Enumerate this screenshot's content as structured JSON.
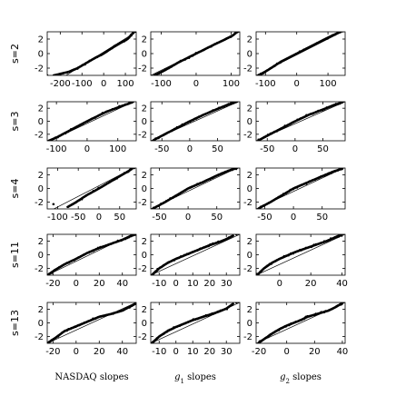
{
  "chart_data": {
    "type": "scatter",
    "description_kind": "normal probability plots (sample quantile vs. normal quantile) with reference line",
    "grid": false,
    "legend": "none",
    "row_labels": [
      "s=2",
      "s=3",
      "s=4",
      "s=11",
      "s=13"
    ],
    "column_labels": [
      {
        "pre": "NASDAQ slopes",
        "sym": "",
        "sub": "",
        "post": ""
      },
      {
        "pre": "",
        "sym": "g",
        "sub": "1",
        "post": " slopes"
      },
      {
        "pre": "",
        "sym": "g",
        "sub": "2",
        "post": " slopes"
      }
    ],
    "y_axis": {
      "range": [
        -3,
        3
      ],
      "ticks": [
        "-2",
        "0",
        "2"
      ]
    },
    "panels": [
      {
        "row": 0,
        "col": 0,
        "xlim": [
          -260,
          150
        ],
        "xticks": [
          {
            "v": -200,
            "t": "-200"
          },
          {
            "v": -100,
            "t": "-100"
          },
          {
            "v": 0,
            "t": "0"
          },
          {
            "v": 100,
            "t": "100"
          }
        ],
        "ref_line": {
          "x": [
            -200,
            150
          ],
          "y": [
            -3.5,
            3.0
          ]
        },
        "curve": [
          [
            -230,
            -3.0
          ],
          [
            -160,
            -2.5
          ],
          [
            -120,
            -2.0
          ],
          [
            -80,
            -1.3
          ],
          [
            -40,
            -0.6
          ],
          [
            0,
            0.0
          ],
          [
            40,
            0.8
          ],
          [
            80,
            1.5
          ],
          [
            110,
            2.0
          ],
          [
            125,
            2.5
          ],
          [
            140,
            3.0
          ]
        ],
        "outliers": [
          [
            -260,
            -3.0
          ],
          [
            150,
            3.0
          ]
        ]
      },
      {
        "row": 0,
        "col": 1,
        "xlim": [
          -130,
          125
        ],
        "xticks": [
          {
            "v": -100,
            "t": "-100"
          },
          {
            "v": 0,
            "t": "0"
          },
          {
            "v": 100,
            "t": "100"
          }
        ],
        "ref_line": {
          "x": [
            -130,
            125
          ],
          "y": [
            -3.0,
            3.0
          ]
        },
        "curve": [
          [
            -120,
            -3.0
          ],
          [
            -90,
            -2.3
          ],
          [
            -50,
            -1.2
          ],
          [
            0,
            0.0
          ],
          [
            50,
            1.2
          ],
          [
            85,
            2.0
          ],
          [
            105,
            2.5
          ],
          [
            118,
            3.0
          ]
        ],
        "outliers": []
      },
      {
        "row": 0,
        "col": 2,
        "xlim": [
          -130,
          155
        ],
        "xticks": [
          {
            "v": -100,
            "t": "-100"
          },
          {
            "v": 0,
            "t": "0"
          },
          {
            "v": 100,
            "t": "100"
          }
        ],
        "ref_line": {
          "x": [
            -130,
            155
          ],
          "y": [
            -3.0,
            3.2
          ]
        },
        "curve": [
          [
            -120,
            -3.0
          ],
          [
            -90,
            -2.2
          ],
          [
            -50,
            -1.1
          ],
          [
            0,
            0.0
          ],
          [
            50,
            1.1
          ],
          [
            100,
            2.2
          ],
          [
            130,
            2.8
          ],
          [
            150,
            3.2
          ]
        ],
        "outliers": []
      },
      {
        "row": 1,
        "col": 0,
        "xlim": [
          -130,
          160
        ],
        "xticks": [
          {
            "v": -100,
            "t": "-100"
          },
          {
            "v": 0,
            "t": "0"
          },
          {
            "v": 100,
            "t": "100"
          }
        ],
        "ref_line": {
          "x": [
            -130,
            160
          ],
          "y": [
            -3.2,
            3.2
          ]
        },
        "curve": [
          [
            -125,
            -3.0
          ],
          [
            -100,
            -2.5
          ],
          [
            -60,
            -1.5
          ],
          [
            0,
            0.0
          ],
          [
            60,
            1.4
          ],
          [
            110,
            2.3
          ],
          [
            135,
            2.7
          ],
          [
            150,
            3.0
          ]
        ],
        "outliers": [
          [
            -128,
            -3.1
          ]
        ]
      },
      {
        "row": 1,
        "col": 1,
        "xlim": [
          -70,
          90
        ],
        "xticks": [
          {
            "v": -50,
            "t": "-50"
          },
          {
            "v": 0,
            "t": "0"
          },
          {
            "v": 50,
            "t": "50"
          }
        ],
        "ref_line": {
          "x": [
            -70,
            90
          ],
          "y": [
            -3.0,
            3.1
          ]
        },
        "curve": [
          [
            -65,
            -2.9
          ],
          [
            -45,
            -2.0
          ],
          [
            -20,
            -0.9
          ],
          [
            0,
            0.0
          ],
          [
            25,
            1.0
          ],
          [
            50,
            1.9
          ],
          [
            70,
            2.6
          ],
          [
            85,
            3.0
          ]
        ],
        "outliers": []
      },
      {
        "row": 1,
        "col": 2,
        "xlim": [
          -70,
          90
        ],
        "xticks": [
          {
            "v": -50,
            "t": "-50"
          },
          {
            "v": 0,
            "t": "0"
          },
          {
            "v": 50,
            "t": "50"
          }
        ],
        "ref_line": {
          "x": [
            -70,
            90
          ],
          "y": [
            -3.0,
            3.0
          ]
        },
        "curve": [
          [
            -65,
            -2.9
          ],
          [
            -45,
            -2.0
          ],
          [
            -20,
            -0.9
          ],
          [
            0,
            0.0
          ],
          [
            25,
            1.0
          ],
          [
            50,
            1.8
          ],
          [
            70,
            2.5
          ],
          [
            85,
            2.9
          ]
        ],
        "outliers": []
      },
      {
        "row": 2,
        "col": 0,
        "xlim": [
          -125,
          90
        ],
        "xticks": [
          {
            "v": -100,
            "t": "-100"
          },
          {
            "v": -50,
            "t": "-50"
          },
          {
            "v": 0,
            "t": "0"
          },
          {
            "v": 50,
            "t": "50"
          }
        ],
        "ref_line": {
          "x": [
            -125,
            90
          ],
          "y": [
            -3.5,
            3.2
          ]
        },
        "curve": [
          [
            -75,
            -2.7
          ],
          [
            -55,
            -2.0
          ],
          [
            -30,
            -1.0
          ],
          [
            0,
            0.0
          ],
          [
            25,
            0.9
          ],
          [
            50,
            1.8
          ],
          [
            70,
            2.5
          ],
          [
            80,
            2.9
          ]
        ],
        "outliers": [
          [
            -110,
            -2.3
          ],
          [
            85,
            3.0
          ]
        ]
      },
      {
        "row": 2,
        "col": 1,
        "xlim": [
          -65,
          90
        ],
        "xticks": [
          {
            "v": -50,
            "t": "-50"
          },
          {
            "v": 0,
            "t": "0"
          },
          {
            "v": 50,
            "t": "50"
          }
        ],
        "ref_line": {
          "x": [
            -65,
            90
          ],
          "y": [
            -3.0,
            3.2
          ]
        },
        "curve": [
          [
            -60,
            -2.9
          ],
          [
            -40,
            -2.0
          ],
          [
            -20,
            -1.0
          ],
          [
            0,
            0.0
          ],
          [
            25,
            0.9
          ],
          [
            50,
            1.9
          ],
          [
            70,
            2.6
          ],
          [
            85,
            3.0
          ]
        ],
        "outliers": [
          [
            -62,
            -3.0
          ],
          [
            88,
            3.1
          ]
        ]
      },
      {
        "row": 2,
        "col": 2,
        "xlim": [
          -65,
          90
        ],
        "xticks": [
          {
            "v": -50,
            "t": "-50"
          },
          {
            "v": 0,
            "t": "0"
          },
          {
            "v": 50,
            "t": "50"
          }
        ],
        "ref_line": {
          "x": [
            -65,
            90
          ],
          "y": [
            -3.0,
            3.1
          ]
        },
        "curve": [
          [
            -60,
            -2.9
          ],
          [
            -40,
            -2.0
          ],
          [
            -20,
            -1.0
          ],
          [
            0,
            0.0
          ],
          [
            25,
            0.9
          ],
          [
            50,
            1.8
          ],
          [
            70,
            2.5
          ],
          [
            85,
            2.9
          ]
        ],
        "outliers": []
      },
      {
        "row": 3,
        "col": 0,
        "xlim": [
          -25,
          52
        ],
        "xticks": [
          {
            "v": -20,
            "t": "-20"
          },
          {
            "v": 0,
            "t": "0"
          },
          {
            "v": 20,
            "t": "20"
          },
          {
            "v": 40,
            "t": "40"
          }
        ],
        "ref_line": {
          "x": [
            -25,
            52
          ],
          "y": [
            -3.0,
            3.3
          ]
        },
        "curve": [
          [
            -24,
            -2.9
          ],
          [
            -18,
            -2.2
          ],
          [
            -10,
            -1.4
          ],
          [
            0,
            -0.6
          ],
          [
            10,
            0.3
          ],
          [
            20,
            1.0
          ],
          [
            30,
            1.6
          ],
          [
            40,
            2.2
          ],
          [
            48,
            2.8
          ],
          [
            52,
            3.0
          ]
        ],
        "outliers": []
      },
      {
        "row": 3,
        "col": 1,
        "xlim": [
          -15,
          38
        ],
        "xticks": [
          {
            "v": -10,
            "t": "-10"
          },
          {
            "v": 0,
            "t": "0"
          },
          {
            "v": 10,
            "t": "10"
          },
          {
            "v": 20,
            "t": "20"
          },
          {
            "v": 30,
            "t": "30"
          }
        ],
        "ref_line": {
          "x": [
            -15,
            38
          ],
          "y": [
            -3.0,
            3.0
          ]
        },
        "curve": [
          [
            -14,
            -2.9
          ],
          [
            -10,
            -2.0
          ],
          [
            -5,
            -1.2
          ],
          [
            0,
            -0.6
          ],
          [
            5,
            -0.1
          ],
          [
            10,
            0.4
          ],
          [
            15,
            0.9
          ],
          [
            20,
            1.4
          ],
          [
            25,
            1.8
          ],
          [
            30,
            2.3
          ],
          [
            34,
            2.8
          ]
        ],
        "outliers": [
          [
            36,
            3.0
          ]
        ]
      },
      {
        "row": 3,
        "col": 2,
        "xlim": [
          -15,
          42
        ],
        "xticks": [
          {
            "v": 0,
            "t": "0"
          },
          {
            "v": 20,
            "t": "20"
          },
          {
            "v": 40,
            "t": "40"
          }
        ],
        "ref_line": {
          "x": [
            -15,
            42
          ],
          "y": [
            -3.0,
            3.0
          ]
        },
        "curve": [
          [
            -14,
            -2.9
          ],
          [
            -10,
            -2.0
          ],
          [
            -5,
            -1.2
          ],
          [
            0,
            -0.6
          ],
          [
            5,
            -0.1
          ],
          [
            10,
            0.4
          ],
          [
            15,
            0.8
          ],
          [
            20,
            1.2
          ],
          [
            25,
            1.6
          ],
          [
            30,
            2.0
          ],
          [
            35,
            2.5
          ],
          [
            40,
            3.0
          ]
        ],
        "outliers": []
      },
      {
        "row": 4,
        "col": 0,
        "xlim": [
          -25,
          52
        ],
        "xticks": [
          {
            "v": -20,
            "t": "-20"
          },
          {
            "v": 0,
            "t": "0"
          },
          {
            "v": 20,
            "t": "20"
          },
          {
            "v": 40,
            "t": "40"
          }
        ],
        "ref_line": {
          "x": [
            -25,
            52
          ],
          "y": [
            -3.0,
            3.0
          ]
        },
        "curve": [
          [
            -24,
            -2.9
          ],
          [
            -18,
            -2.2
          ],
          [
            -10,
            -1.2
          ],
          [
            0,
            -0.5
          ],
          [
            10,
            0.2
          ],
          [
            20,
            0.9
          ],
          [
            30,
            1.3
          ],
          [
            40,
            1.8
          ],
          [
            48,
            2.5
          ],
          [
            52,
            2.9
          ]
        ],
        "outliers": []
      },
      {
        "row": 4,
        "col": 1,
        "xlim": [
          -15,
          38
        ],
        "xticks": [
          {
            "v": -10,
            "t": "-10"
          },
          {
            "v": 0,
            "t": "0"
          },
          {
            "v": 10,
            "t": "10"
          },
          {
            "v": 20,
            "t": "20"
          },
          {
            "v": 30,
            "t": "30"
          }
        ],
        "ref_line": {
          "x": [
            -15,
            38
          ],
          "y": [
            -3.0,
            3.0
          ]
        },
        "curve": [
          [
            -14,
            -2.9
          ],
          [
            -10,
            -2.0
          ],
          [
            -5,
            -1.2
          ],
          [
            0,
            -0.6
          ],
          [
            5,
            -0.1
          ],
          [
            10,
            0.4
          ],
          [
            15,
            0.8
          ],
          [
            20,
            1.2
          ],
          [
            25,
            1.6
          ],
          [
            30,
            2.1
          ],
          [
            34,
            2.8
          ]
        ],
        "outliers": [
          [
            36,
            3.0
          ]
        ]
      },
      {
        "row": 4,
        "col": 2,
        "xlim": [
          -22,
          42
        ],
        "xticks": [
          {
            "v": -20,
            "t": "-20"
          },
          {
            "v": 0,
            "t": "0"
          },
          {
            "v": 20,
            "t": "20"
          },
          {
            "v": 40,
            "t": "40"
          }
        ],
        "ref_line": {
          "x": [
            -22,
            42
          ],
          "y": [
            -3.0,
            3.0
          ]
        },
        "curve": [
          [
            -20,
            -2.9
          ],
          [
            -15,
            -2.2
          ],
          [
            -10,
            -1.5
          ],
          [
            -5,
            -0.9
          ],
          [
            0,
            -0.4
          ],
          [
            5,
            0.0
          ],
          [
            10,
            0.4
          ],
          [
            15,
            0.9
          ],
          [
            20,
            1.2
          ],
          [
            25,
            1.5
          ],
          [
            30,
            1.8
          ],
          [
            35,
            2.3
          ],
          [
            40,
            2.9
          ]
        ],
        "outliers": []
      }
    ]
  }
}
